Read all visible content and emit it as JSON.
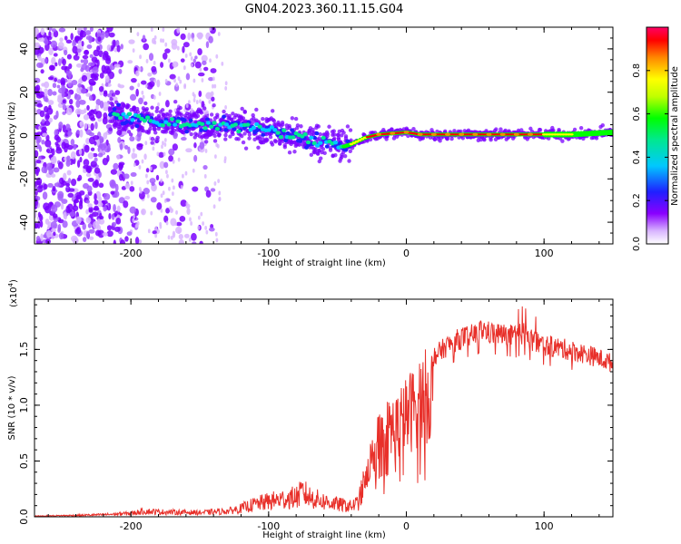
{
  "title": "GN04.2023.360.11.15.G04",
  "chart_data": [
    {
      "type": "heatmap",
      "subtype": "spectrogram",
      "xlabel": "Height of straight line (km)",
      "ylabel": "Frequency (Hz)",
      "xlim": [
        -270,
        150
      ],
      "ylim": [
        -50,
        50
      ],
      "xticks": [
        -200,
        -100,
        0,
        100
      ],
      "xtick_labels": [
        "-200",
        "-100",
        "0",
        "100"
      ],
      "yticks": [
        -40,
        -20,
        0,
        20,
        40
      ],
      "ytick_labels": [
        "-40",
        "-20",
        "0",
        "20",
        "40"
      ],
      "colorbar": {
        "label": "Normalized spectral amplitude",
        "range": [
          0,
          1
        ],
        "ticks": [
          0.0,
          0.2,
          0.4,
          0.6,
          0.8
        ],
        "tick_labels": [
          "0.0",
          "0.2",
          "0.4",
          "0.6",
          "0.8"
        ],
        "colormap": [
          "#ffffff",
          "#d8b4ff",
          "#7a00ff",
          "#1f20ff",
          "#00c8ff",
          "#00e890",
          "#00ff00",
          "#c0ff00",
          "#ffff00",
          "#ff8800",
          "#ff0000",
          "#ff0066"
        ]
      },
      "ridge": {
        "x": [
          -215,
          -200,
          -180,
          -160,
          -140,
          -120,
          -100,
          -90,
          -80,
          -70,
          -60,
          -50,
          -45,
          -40,
          -30,
          -20,
          -10,
          0,
          10,
          30,
          60,
          90,
          120,
          150
        ],
        "y": [
          10,
          8,
          6,
          5,
          5,
          4,
          3,
          1,
          -1,
          -2,
          -3,
          -4,
          -5,
          -4,
          -1,
          0.5,
          1,
          1.5,
          0.5,
          0.5,
          0.5,
          0.5,
          0.5,
          1.5
        ]
      },
      "grid": false
    },
    {
      "type": "line",
      "xlabel": "Height of straight line (km)",
      "ylabel": "SNR (10 * v/v)",
      "scale_label": "(x10",
      "scale_exp": "4",
      "scale_close": ")",
      "xlim": [
        -270,
        150
      ],
      "ylim": [
        0,
        1.95
      ],
      "xticks": [
        -200,
        -100,
        0,
        100
      ],
      "xtick_labels": [
        "-200",
        "-100",
        "0",
        "100"
      ],
      "yticks": [
        0.0,
        0.5,
        1.0,
        1.5
      ],
      "ytick_labels": [
        "0.0",
        "0.5",
        "1.0",
        "1.5"
      ],
      "series": [
        {
          "color": "#e8302a",
          "envelope_x": [
            -270,
            -240,
            -220,
            -200,
            -190,
            -180,
            -150,
            -130,
            -120,
            -110,
            -100,
            -90,
            -80,
            -75,
            -70,
            -60,
            -50,
            -40,
            -35,
            -30,
            -25,
            -20,
            -15,
            -10,
            -5,
            0,
            5,
            10,
            15,
            20,
            30,
            40,
            50,
            55,
            60,
            70,
            80,
            85,
            90,
            100,
            110,
            120,
            130,
            140,
            150
          ],
          "envelope_y": [
            0.01,
            0.02,
            0.03,
            0.05,
            0.08,
            0.07,
            0.06,
            0.08,
            0.12,
            0.18,
            0.22,
            0.25,
            0.28,
            0.35,
            0.28,
            0.22,
            0.18,
            0.15,
            0.2,
            0.5,
            0.7,
            0.9,
            1.0,
            1.05,
            1.1,
            1.2,
            1.3,
            1.4,
            1.45,
            1.5,
            1.6,
            1.67,
            1.7,
            1.75,
            1.72,
            1.7,
            1.68,
            1.72,
            1.65,
            1.6,
            1.58,
            1.55,
            1.52,
            1.48,
            1.43
          ]
        }
      ],
      "grid": false
    }
  ]
}
